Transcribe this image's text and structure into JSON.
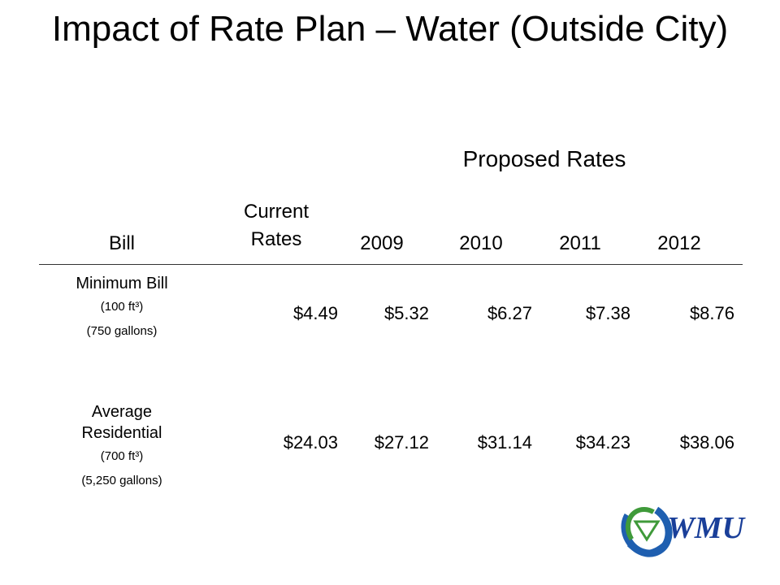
{
  "title": "Impact of Rate Plan – Water (Outside City)",
  "proposed_header": "Proposed Rates",
  "columns": {
    "bill": "Bill",
    "current": "Current Rates",
    "years": [
      "2009",
      "2010",
      "2011",
      "2012"
    ]
  },
  "rows": [
    {
      "label": "Minimum Bill",
      "volume": "(100 ft³)",
      "gallons": "(750 gallons)",
      "values": [
        "$4.49",
        "$5.32",
        "$6.27",
        "$7.38",
        "$8.76"
      ]
    },
    {
      "label": "Average Residential",
      "volume": "(700 ft³)",
      "gallons": "(5,250 gallons)",
      "values": [
        "$24.03",
        "$27.12",
        "$31.14",
        "$34.23",
        "$38.06"
      ]
    }
  ],
  "logo": {
    "text": "WMU",
    "colors": {
      "blue": "#1f5fb0",
      "green": "#3f9a3a",
      "text": "#1a3f99"
    }
  }
}
